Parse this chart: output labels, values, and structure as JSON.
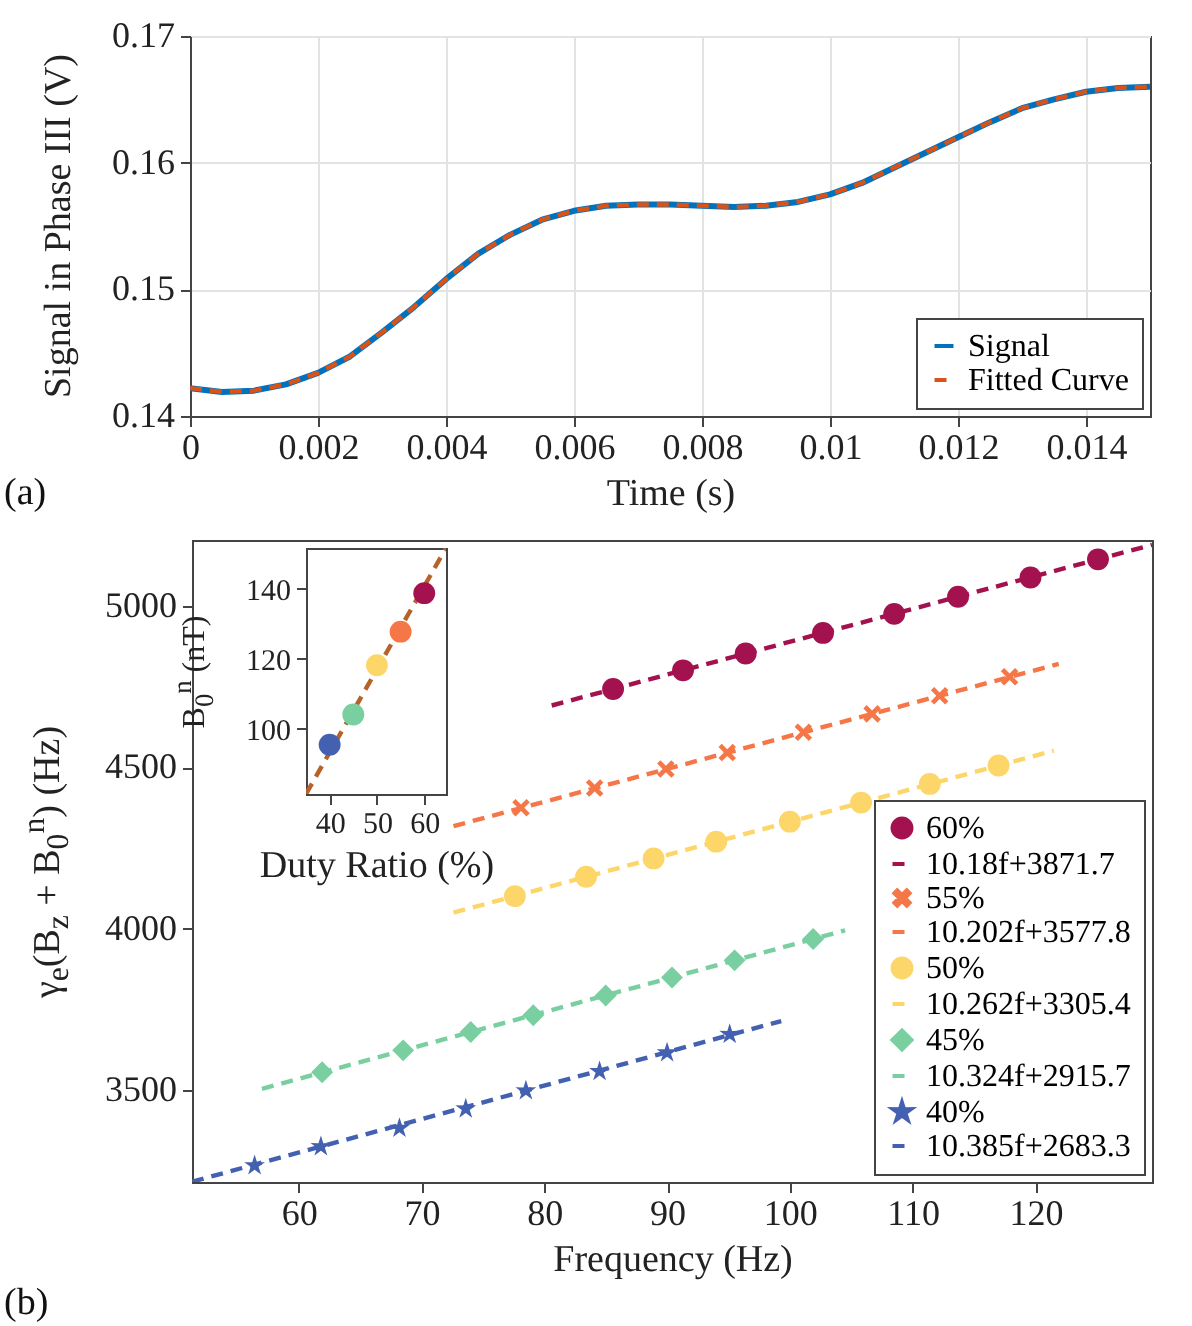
{
  "chart_data": [
    {
      "type": "line",
      "xlabel": "Time (s)",
      "ylabel": "Signal in Phase III (V)",
      "annotations": [
        "(a)"
      ],
      "xlim": [
        0,
        0.015
      ],
      "ylim": [
        0.14,
        0.17
      ],
      "xticks": [
        0,
        0.002,
        0.004,
        0.006,
        0.008,
        0.01,
        0.012,
        0.014
      ],
      "yticks": [
        0.14,
        0.15,
        0.16,
        0.17
      ],
      "grid": true,
      "legend": "bottom right",
      "x": [
        0,
        0.0005,
        0.001,
        0.0015,
        0.002,
        0.0025,
        0.003,
        0.0035,
        0.004,
        0.0045,
        0.005,
        0.0055,
        0.006,
        0.0065,
        0.007,
        0.0075,
        0.008,
        0.0085,
        0.009,
        0.0095,
        0.01,
        0.0105,
        0.011,
        0.0115,
        0.012,
        0.0125,
        0.013,
        0.0135,
        0.014,
        0.0145,
        0.015
      ],
      "series": [
        {
          "name": "Signal",
          "color": "#0072bd",
          "line_style": "solid",
          "values": [
            0.1422,
            0.1419,
            0.142,
            0.1425,
            0.1434,
            0.1447,
            0.1466,
            0.1486,
            0.1508,
            0.1528,
            0.1543,
            0.1555,
            0.1562,
            0.1566,
            0.1567,
            0.1567,
            0.1566,
            0.1565,
            0.1566,
            0.1569,
            0.1575,
            0.1584,
            0.1596,
            0.1608,
            0.162,
            0.1632,
            0.1643,
            0.165,
            0.1656,
            0.1659,
            0.166
          ]
        },
        {
          "name": "Fitted Curve",
          "color": "#d95319",
          "line_style": "dashed",
          "values": [
            0.1422,
            0.1419,
            0.142,
            0.1425,
            0.1434,
            0.1447,
            0.1466,
            0.1486,
            0.1508,
            0.1528,
            0.1543,
            0.1555,
            0.1562,
            0.1566,
            0.1567,
            0.1567,
            0.1566,
            0.1565,
            0.1566,
            0.1569,
            0.1575,
            0.1584,
            0.1596,
            0.1608,
            0.162,
            0.1632,
            0.1643,
            0.165,
            0.1656,
            0.1659,
            0.166
          ]
        }
      ]
    },
    {
      "type": "scatter",
      "xlabel": "Frequency (Hz)",
      "ylabel": "γ$_{e}$(B$_{z}$ + B$_{0}$$^{n}$) (Hz)",
      "annotations": [
        "(b)"
      ],
      "xlim": [
        51.3,
        129.5
      ],
      "ylim": [
        3215,
        5205
      ],
      "xticks": [
        60,
        70,
        80,
        90,
        100,
        110,
        120
      ],
      "yticks": [
        3500,
        4000,
        4500,
        5000
      ],
      "legend": "bottom right",
      "series": [
        {
          "name": "60%",
          "type": "scatter",
          "marker": "circle",
          "color": "#a3124f",
          "x": [
            85.6,
            91.3,
            96.4,
            102.7,
            108.5,
            113.7,
            119.6,
            125.1
          ],
          "values": [
            4743,
            4801,
            4853,
            4917,
            4976,
            5029,
            5089,
            5145
          ]
        },
        {
          "name": "10.18f+3871.7",
          "type": "line",
          "line_style": "dashed",
          "color": "#a3124f",
          "x": [
            80.6,
            129.5
          ],
          "values": [
            4692,
            5190
          ]
        },
        {
          "name": "55%",
          "type": "scatter",
          "marker": "cross",
          "color": "#f57748",
          "x": [
            78.1,
            84.1,
            89.9,
            94.9,
            101.1,
            106.7,
            112.2,
            117.9
          ],
          "values": [
            4375,
            4436,
            4495,
            4546,
            4609,
            4666,
            4722,
            4781
          ]
        },
        {
          "name": "10.202f+3577.8",
          "type": "line",
          "line_style": "dashed",
          "color": "#f57748",
          "x": [
            72.6,
            121.9
          ],
          "values": [
            4318,
            4821
          ]
        },
        {
          "name": "50%",
          "type": "scatter",
          "marker": "circle",
          "color": "#fdd66a",
          "x": [
            77.6,
            83.4,
            88.9,
            94.0,
            100.0,
            105.8,
            111.4,
            117.0
          ],
          "values": [
            4101,
            4161,
            4218,
            4270,
            4332,
            4391,
            4449,
            4506
          ]
        },
        {
          "name": "10.262f+3305.4",
          "type": "line",
          "line_style": "dashed",
          "color": "#fdd66a",
          "x": [
            72.6,
            121.5
          ],
          "values": [
            4050,
            4552
          ]
        },
        {
          "name": "45%",
          "type": "scatter",
          "marker": "diamond",
          "color": "#79cfa0",
          "x": [
            61.9,
            68.5,
            74.0,
            79.1,
            85.0,
            90.4,
            95.5,
            101.9
          ],
          "values": [
            3555,
            3623,
            3680,
            3732,
            3793,
            3849,
            3902,
            3968
          ]
        },
        {
          "name": "10.324f+2915.7",
          "type": "line",
          "line_style": "dashed",
          "color": "#79cfa0",
          "x": [
            57.0,
            104.5
          ],
          "values": [
            3504,
            3995
          ]
        },
        {
          "name": "40%",
          "type": "scatter",
          "marker": "star",
          "color": "#4361b0",
          "x": [
            56.4,
            61.8,
            68.2,
            73.6,
            78.5,
            84.5,
            90.0,
            95.1
          ],
          "values": [
            3266,
            3325,
            3382,
            3442,
            3498,
            3558,
            3616,
            3673
          ]
        },
        {
          "name": "10.385f+2683.3",
          "type": "line",
          "line_style": "dashed",
          "color": "#4361b0",
          "x": [
            51.3,
            99.3
          ],
          "values": [
            3216,
            3714
          ]
        }
      ]
    },
    {
      "type": "scatter",
      "xlabel": "Duty Ratio (%)",
      "ylabel": "B$_{0}$$^{n}$ (nT)",
      "xlim": [
        35,
        64.6
      ],
      "ylim": [
        81.3,
        151.6
      ],
      "xticks": [
        40,
        50,
        60
      ],
      "yticks": [
        100,
        120,
        140
      ],
      "series": [
        {
          "type": "line",
          "line_style": "dashed",
          "color": "#b5632a",
          "x": [
            35,
            64.6
          ],
          "values": [
            81.3,
            151.6
          ]
        },
        {
          "type": "scatter",
          "marker": "circle",
          "colors": [
            "#4361b0",
            "#79cfa0",
            "#fdd66a",
            "#f57748",
            "#a3124f"
          ],
          "x": [
            40,
            45,
            50,
            55,
            60
          ],
          "values": [
            95.4,
            104.0,
            118.1,
            127.7,
            138.7
          ]
        }
      ]
    }
  ]
}
